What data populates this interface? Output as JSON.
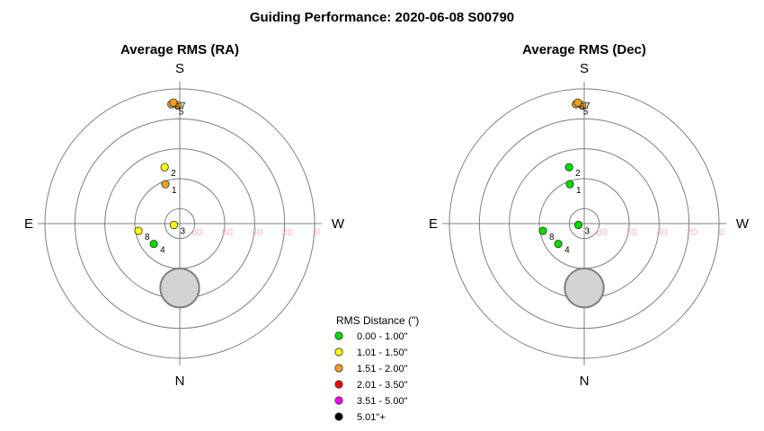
{
  "title": "Guiding Performance: 2020-06-08 S00790",
  "compass": {
    "north": "N",
    "south": "S",
    "east": "E",
    "west": "W"
  },
  "altitude_ticks": [
    "80",
    "60",
    "40",
    "20",
    "0"
  ],
  "legend": {
    "title": "RMS Distance (\")",
    "items": [
      {
        "label": "0.00 - 1.00\"",
        "color": "#00dd00"
      },
      {
        "label": "1.01 - 1.50\"",
        "color": "#ffff00"
      },
      {
        "label": "1.51 - 2.00\"",
        "color": "#f0a020"
      },
      {
        "label": "2.01 - 3.50\"",
        "color": "#ff0000"
      },
      {
        "label": "3.51 - 5.00\"",
        "color": "#ff00ff"
      },
      {
        "label": "5.01\"+",
        "color": "#000000"
      }
    ]
  },
  "chart_data": [
    {
      "type": "scatter",
      "title": "Average RMS (RA)",
      "coordinate_system": "polar alt-az (azimuth deg, altitude deg)",
      "radial_axis": {
        "ticks": [
          80,
          60,
          40,
          20,
          0
        ]
      },
      "moon": {
        "azimuth": 0,
        "altitude": 47,
        "radius_deg": 13
      },
      "points": [
        {
          "label": "1",
          "azimuth": 160,
          "altitude": 62,
          "color": "#f0a020"
        },
        {
          "label": "2",
          "azimuth": 165,
          "altitude": 51,
          "color": "#ffff00"
        },
        {
          "label": "3",
          "azimuth": 77,
          "altitude": 86,
          "color": "#ffff00"
        },
        {
          "label": "4",
          "azimuth": 52,
          "altitude": 68,
          "color": "#00dd00"
        },
        {
          "label": "5",
          "azimuth": 179,
          "altitude": 11,
          "color": "#f0a020"
        },
        {
          "label": "6",
          "azimuth": 176,
          "altitude": 10,
          "color": "#f0a020"
        },
        {
          "label": "7",
          "azimuth": 177,
          "altitude": 9,
          "color": "#f0a020"
        },
        {
          "label": "8",
          "azimuth": 80,
          "altitude": 62,
          "color": "#ffff00"
        }
      ]
    },
    {
      "type": "scatter",
      "title": "Average RMS (Dec)",
      "coordinate_system": "polar alt-az (azimuth deg, altitude deg)",
      "radial_axis": {
        "ticks": [
          80,
          60,
          40,
          20,
          0
        ]
      },
      "moon": {
        "azimuth": 0,
        "altitude": 47,
        "radius_deg": 13
      },
      "points": [
        {
          "label": "1",
          "azimuth": 160,
          "altitude": 62,
          "color": "#00dd00"
        },
        {
          "label": "2",
          "azimuth": 165,
          "altitude": 51,
          "color": "#00dd00"
        },
        {
          "label": "3",
          "azimuth": 77,
          "altitude": 86,
          "color": "#00dd00"
        },
        {
          "label": "4",
          "azimuth": 52,
          "altitude": 68,
          "color": "#00dd00"
        },
        {
          "label": "5",
          "azimuth": 179,
          "altitude": 11,
          "color": "#f0a020"
        },
        {
          "label": "6",
          "azimuth": 176,
          "altitude": 10,
          "color": "#f0a020"
        },
        {
          "label": "7",
          "azimuth": 177,
          "altitude": 9,
          "color": "#f0a020"
        },
        {
          "label": "8",
          "azimuth": 80,
          "altitude": 62,
          "color": "#00dd00"
        }
      ]
    }
  ]
}
